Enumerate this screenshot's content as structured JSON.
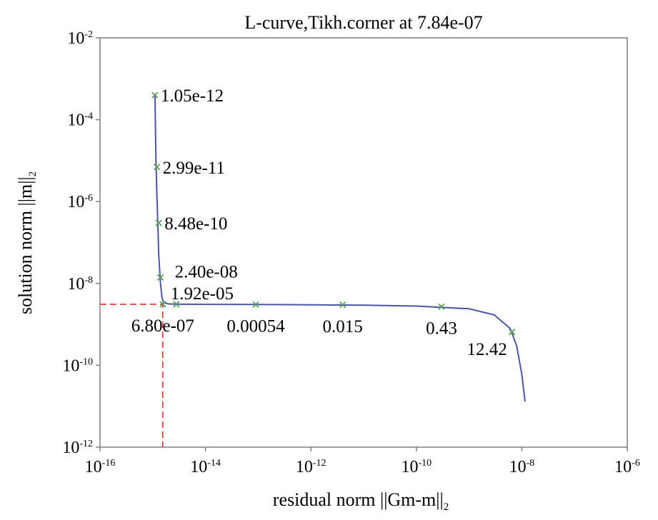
{
  "chart_data": {
    "type": "line",
    "title": "L-curve,Tikh.corner at 7.84e-07",
    "xlabel_main": "residual norm ||Gm-m||",
    "xlabel_sub": "2",
    "ylabel_main": "solution norm ||m||",
    "ylabel_sub": "2",
    "xscale": "log",
    "yscale": "log",
    "xlim": [
      1e-16,
      1e-06
    ],
    "ylim": [
      1e-12,
      0.01
    ],
    "xticks": [
      {
        "base": "10",
        "exp": "-16",
        "value": 1e-16
      },
      {
        "base": "10",
        "exp": "-14",
        "value": 1e-14
      },
      {
        "base": "10",
        "exp": "-12",
        "value": 1e-12
      },
      {
        "base": "10",
        "exp": "-10",
        "value": 1e-10
      },
      {
        "base": "10",
        "exp": "-8",
        "value": 1e-08
      },
      {
        "base": "10",
        "exp": "-6",
        "value": 1e-06
      }
    ],
    "yticks": [
      {
        "base": "10",
        "exp": "-12",
        "value": 1e-12
      },
      {
        "base": "10",
        "exp": "-10",
        "value": 1e-10
      },
      {
        "base": "10",
        "exp": "-8",
        "value": 1e-08
      },
      {
        "base": "10",
        "exp": "-6",
        "value": 1e-06
      },
      {
        "base": "10",
        "exp": "-4",
        "value": 0.0001
      },
      {
        "base": "10",
        "exp": "-2",
        "value": 0.01
      }
    ],
    "series": [
      {
        "color": "#4a55a8",
        "x": [
          1.1e-15,
          1.15e-15,
          1.2e-15,
          1.25e-15,
          1.3e-15,
          1.4e-15,
          1.5e-15,
          1.6e-15,
          2e-15,
          3e-15,
          1e-14,
          1e-13,
          1e-12,
          1e-11,
          1e-10,
          1e-09,
          3e-09,
          6e-09,
          8e-09,
          1e-08,
          1.15e-08
        ],
        "y": [
          0.0004,
          1e-05,
          1.5e-06,
          2.5e-07,
          5e-08,
          1e-08,
          4.5e-09,
          3.4e-09,
          3.15e-09,
          3.1e-09,
          3.08e-09,
          3.05e-09,
          3e-09,
          2.95e-09,
          2.8e-09,
          2.4e-09,
          1.7e-09,
          8e-10,
          3e-10,
          6e-11,
          1.3e-11
        ]
      }
    ],
    "markers": [
      {
        "label": "1.05e-12",
        "x": 1.1e-15,
        "y": 0.0004,
        "anchor": "right"
      },
      {
        "label": "2.99e-11",
        "x": 1.2e-15,
        "y": 7e-06,
        "anchor": "right"
      },
      {
        "label": "8.48e-10",
        "x": 1.3e-15,
        "y": 3e-07,
        "anchor": "right"
      },
      {
        "label": "2.40e-08",
        "x": 1.4e-15,
        "y": 1.4e-08,
        "anchor": "right-far"
      },
      {
        "label": "6.80e-07",
        "x": 1.55e-15,
        "y": 3.1e-09,
        "anchor": "below"
      },
      {
        "label": "1.92e-05",
        "x": 2.8e-15,
        "y": 3.1e-09,
        "anchor": "above"
      },
      {
        "label": "0.00054",
        "x": 9e-14,
        "y": 3.05e-09,
        "anchor": "below"
      },
      {
        "label": "0.015",
        "x": 4e-12,
        "y": 3e-09,
        "anchor": "below"
      },
      {
        "label": "0.43",
        "x": 3e-10,
        "y": 2.7e-09,
        "anchor": "below"
      },
      {
        "label": "12.42",
        "x": 6.5e-09,
        "y": 6.5e-10,
        "anchor": "below-left"
      }
    ],
    "corner": {
      "x": 1.55e-15,
      "y": 3.1e-09,
      "color": "#e02020"
    },
    "grid": false,
    "legend": "none"
  }
}
